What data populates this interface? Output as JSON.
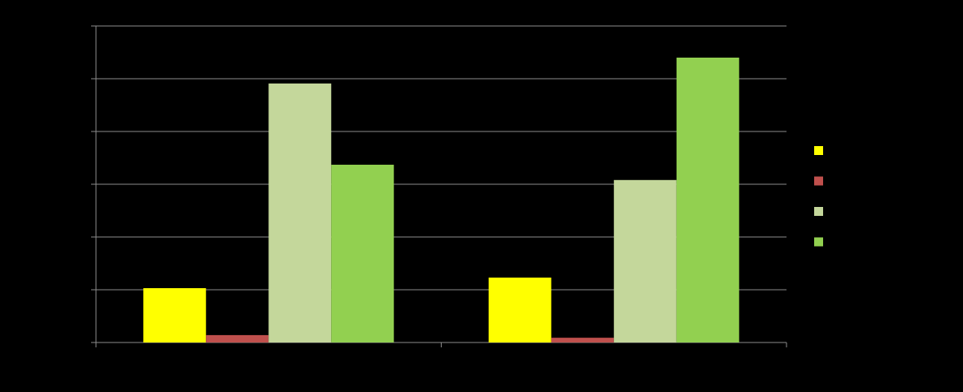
{
  "chart_data": {
    "type": "bar",
    "categories": [
      null,
      null
    ],
    "series": [
      {
        "color": "#ffff00",
        "values": [
          1.03,
          1.23
        ]
      },
      {
        "color": "#c0504d",
        "values": [
          0.14,
          0.09
        ]
      },
      {
        "color": "#c4d79b",
        "values": [
          4.91,
          3.08
        ]
      },
      {
        "color": "#92d050",
        "values": [
          3.37,
          5.4
        ]
      }
    ],
    "ylim": [
      0,
      6
    ],
    "yticks": [
      0,
      1,
      2,
      3,
      4,
      5,
      6
    ],
    "grid": true,
    "legend": "right"
  }
}
